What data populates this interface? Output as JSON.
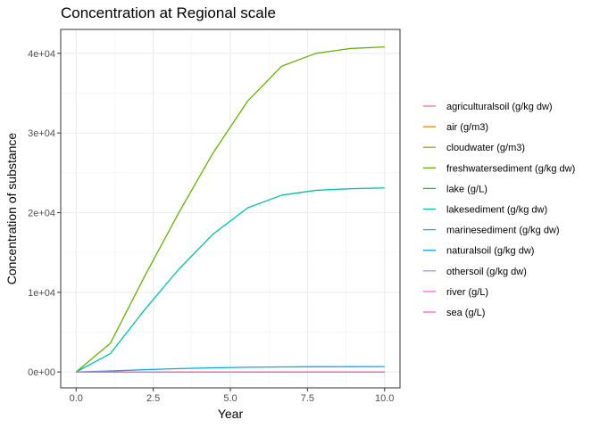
{
  "chart_data": {
    "type": "line",
    "title": "Concentration at Regional scale",
    "xlabel": "Year",
    "ylabel": "Concentration of substance",
    "xlim": [
      -0.5,
      10.5
    ],
    "ylim": [
      -2000,
      43000
    ],
    "x_ticks": [
      0,
      2.5,
      5,
      7.5,
      10
    ],
    "x_tick_labels": [
      "0.0",
      "2.5",
      "5.0",
      "7.5",
      "10.0"
    ],
    "y_ticks": [
      0,
      10000,
      20000,
      30000,
      40000
    ],
    "y_tick_labels": [
      "0e+00",
      "1e+04",
      "2e+04",
      "3e+04",
      "4e+04"
    ],
    "grid": true,
    "legend_position": "right",
    "x": [
      0,
      1.11,
      2.22,
      3.33,
      4.44,
      5.56,
      6.67,
      7.78,
      8.89,
      10
    ],
    "series": [
      {
        "name": "agriculturalsoil (g/kg dw)",
        "color": "#F8766D",
        "values": [
          0,
          0,
          0,
          0,
          0,
          0,
          0,
          0,
          0,
          0
        ]
      },
      {
        "name": "air (g/m3)",
        "color": "#DB8E00",
        "values": [
          0,
          0,
          0,
          0,
          0,
          0,
          0,
          0,
          0,
          0
        ]
      },
      {
        "name": "cloudwater (g/m3)",
        "color": "#AEA200",
        "values": [
          0,
          0,
          0,
          0,
          0,
          0,
          0,
          0,
          0,
          0
        ]
      },
      {
        "name": "freshwatersediment (g/kg dw)",
        "color": "#64B200",
        "values": [
          0,
          3600,
          12000,
          20000,
          27500,
          34000,
          38400,
          40000,
          40600,
          40800
        ]
      },
      {
        "name": "lake (g/L)",
        "color": "#00BD5C",
        "values": [
          0,
          0,
          0,
          0,
          0,
          0,
          0,
          0,
          0,
          0
        ]
      },
      {
        "name": "lakesediment (g/kg dw)",
        "color": "#00C1A7",
        "values": [
          0,
          2300,
          7800,
          12900,
          17300,
          20600,
          22200,
          22800,
          23000,
          23100
        ]
      },
      {
        "name": "marinesediment (g/kg dw)",
        "color": "#00BADE",
        "values": [
          0,
          0,
          0,
          0,
          0,
          0,
          0,
          0,
          0,
          0
        ]
      },
      {
        "name": "naturalsoil (g/kg dw)",
        "color": "#00A6FF",
        "values": [
          0,
          120,
          280,
          420,
          520,
          590,
          630,
          650,
          665,
          670
        ]
      },
      {
        "name": "othersoil (g/kg dw)",
        "color": "#B385FF",
        "values": [
          0,
          0,
          0,
          0,
          0,
          0,
          0,
          0,
          0,
          0
        ]
      },
      {
        "name": "river (g/L)",
        "color": "#EF67EB",
        "values": [
          0,
          0,
          0,
          0,
          0,
          0,
          0,
          0,
          0,
          0
        ]
      },
      {
        "name": "sea (g/L)",
        "color": "#FF63B6",
        "values": [
          0,
          0,
          0,
          0,
          0,
          0,
          0,
          0,
          0,
          0
        ]
      }
    ]
  }
}
